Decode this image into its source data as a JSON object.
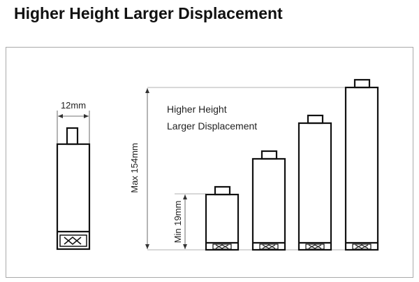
{
  "title": "Higher Height Larger Displacement",
  "diagram": {
    "width_label": "12mm",
    "max_height_label": "Max 154mm",
    "min_height_label": "Min 19mm",
    "caption_line1": "Higher Height",
    "caption_line2": "Larger Displacement",
    "cylinder_count": 4
  }
}
